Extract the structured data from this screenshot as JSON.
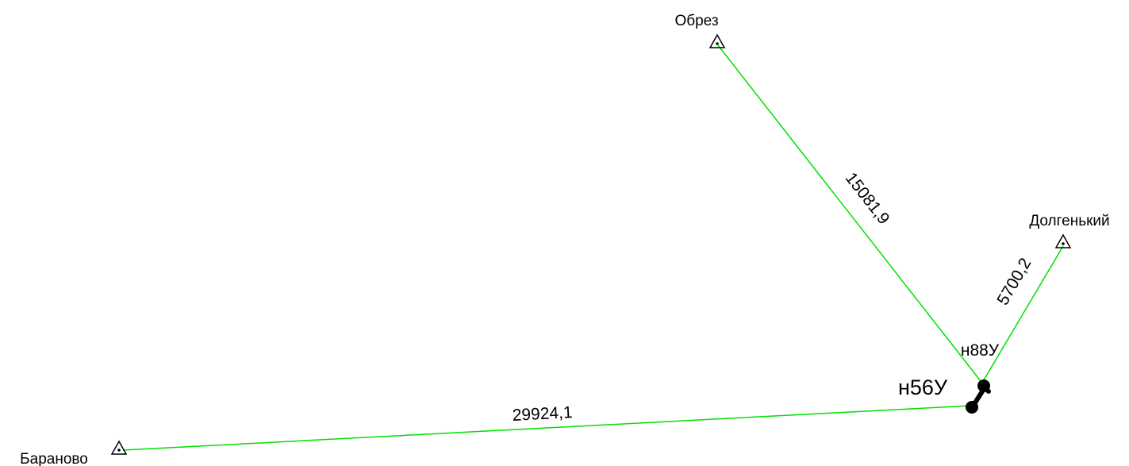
{
  "stations": [
    {
      "label": "Обрез"
    },
    {
      "label": "Долгенький"
    },
    {
      "label": "Бараново"
    }
  ],
  "points": [
    {
      "label": "н88У"
    },
    {
      "label": "н56У"
    }
  ],
  "edges": [
    {
      "label": "15081,9"
    },
    {
      "label": "5700,2"
    },
    {
      "label": "29924,1"
    }
  ]
}
